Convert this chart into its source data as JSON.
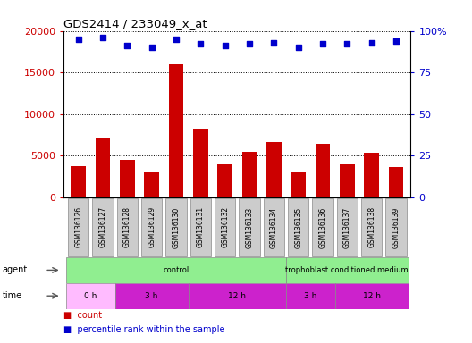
{
  "title": "GDS2414 / 233049_x_at",
  "samples": [
    "GSM136126",
    "GSM136127",
    "GSM136128",
    "GSM136129",
    "GSM136130",
    "GSM136131",
    "GSM136132",
    "GSM136133",
    "GSM136134",
    "GSM136135",
    "GSM136136",
    "GSM136137",
    "GSM136138",
    "GSM136139"
  ],
  "counts": [
    3700,
    7100,
    4500,
    3000,
    16000,
    8200,
    4000,
    5500,
    6600,
    3000,
    6400,
    4000,
    5300,
    3600
  ],
  "percentiles": [
    95,
    96,
    91,
    90,
    95,
    92,
    91,
    92,
    93,
    90,
    92,
    92,
    93,
    94
  ],
  "bar_color": "#cc0000",
  "dot_color": "#0000cc",
  "ylim_left": [
    0,
    20000
  ],
  "ylim_right": [
    0,
    100
  ],
  "yticks_left": [
    0,
    5000,
    10000,
    15000,
    20000
  ],
  "yticks_right": [
    0,
    25,
    50,
    75,
    100
  ],
  "agent_groups": [
    {
      "label": "control",
      "start": 0,
      "end": 9,
      "color": "#90ee90"
    },
    {
      "label": "trophoblast conditioned medium",
      "start": 9,
      "end": 14,
      "color": "#90ee90"
    }
  ],
  "time_groups": [
    {
      "label": "0 h",
      "start": 0,
      "end": 2,
      "color": "#ffb3ff"
    },
    {
      "label": "3 h",
      "start": 2,
      "end": 5,
      "color": "#dd33dd"
    },
    {
      "label": "12 h",
      "start": 5,
      "end": 9,
      "color": "#dd33dd"
    },
    {
      "label": "3 h",
      "start": 9,
      "end": 11,
      "color": "#dd33dd"
    },
    {
      "label": "12 h",
      "start": 11,
      "end": 14,
      "color": "#dd33dd"
    }
  ],
  "bg_color": "#ffffff",
  "bar_border_color": "#aaaaaa",
  "tick_label_color_left": "#cc0000",
  "tick_label_color_right": "#0000cc",
  "xtick_bg": "#cccccc"
}
